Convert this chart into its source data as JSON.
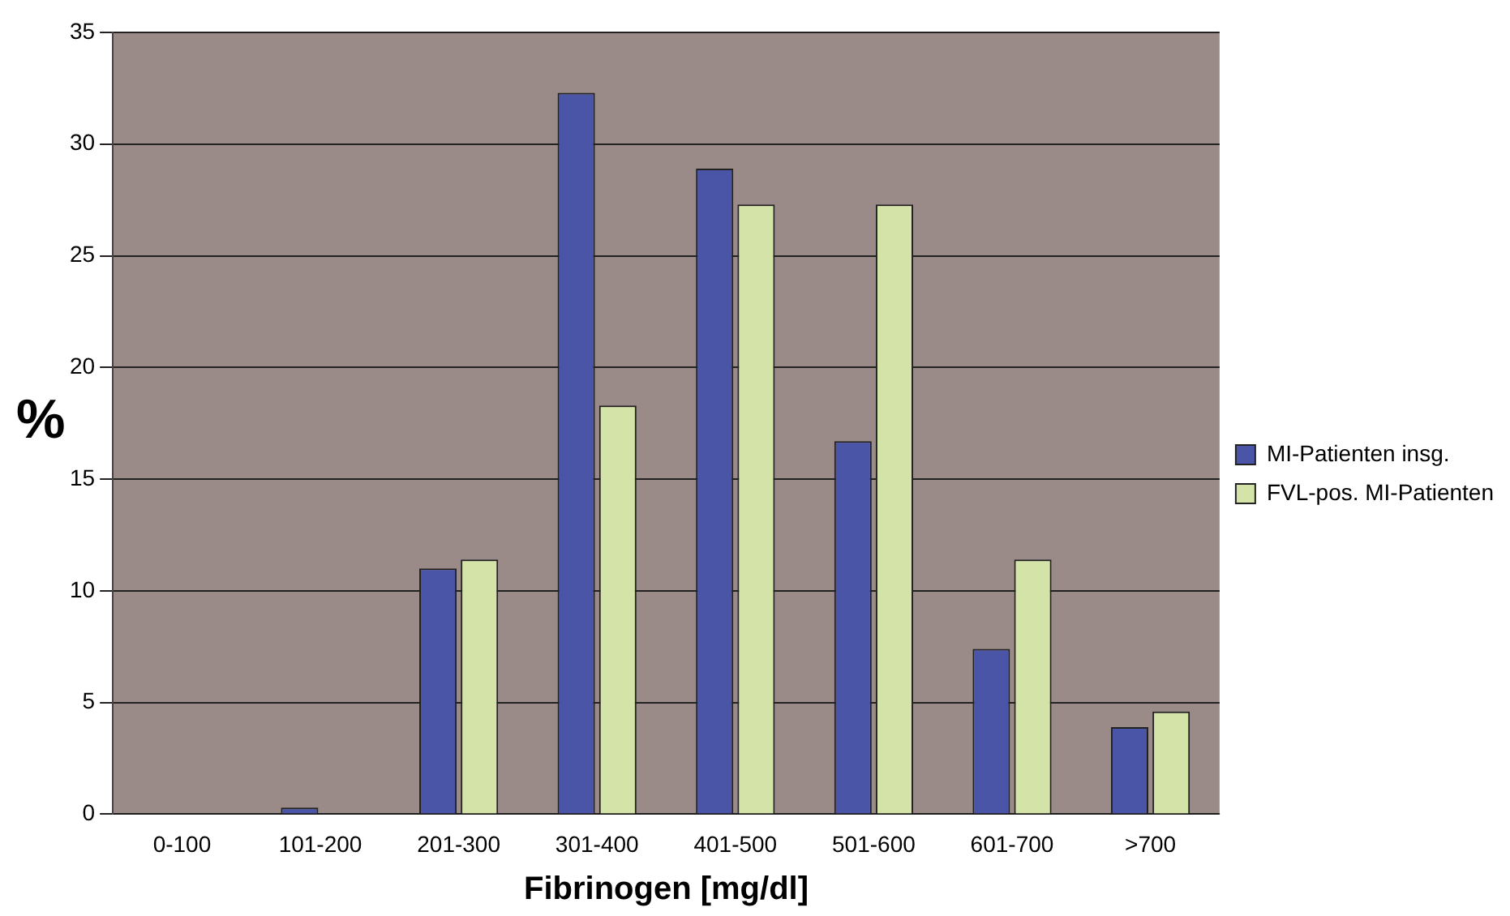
{
  "chart_data": {
    "type": "bar",
    "xlabel": "Fibrinogen [mg/dl]",
    "ylabel": "%",
    "categories": [
      "0-100",
      "101-200",
      "201-300",
      "301-400",
      "401-500",
      "501-600",
      "601-700",
      ">700"
    ],
    "series": [
      {
        "name": "MI-Patienten insg.",
        "color": "#4a55a8",
        "values": [
          0,
          0.3,
          11,
          32.3,
          28.9,
          16.7,
          7.4,
          3.9
        ]
      },
      {
        "name": "FVL-pos. MI-Patienten",
        "color": "#d4e4a8",
        "values": [
          0,
          0,
          11.4,
          18.3,
          27.3,
          27.3,
          11.4,
          4.6
        ]
      }
    ],
    "ylim": [
      0,
      35
    ],
    "yticks": [
      0,
      5,
      10,
      15,
      20,
      25,
      30,
      35
    ],
    "grid": "y",
    "legend": "right"
  }
}
